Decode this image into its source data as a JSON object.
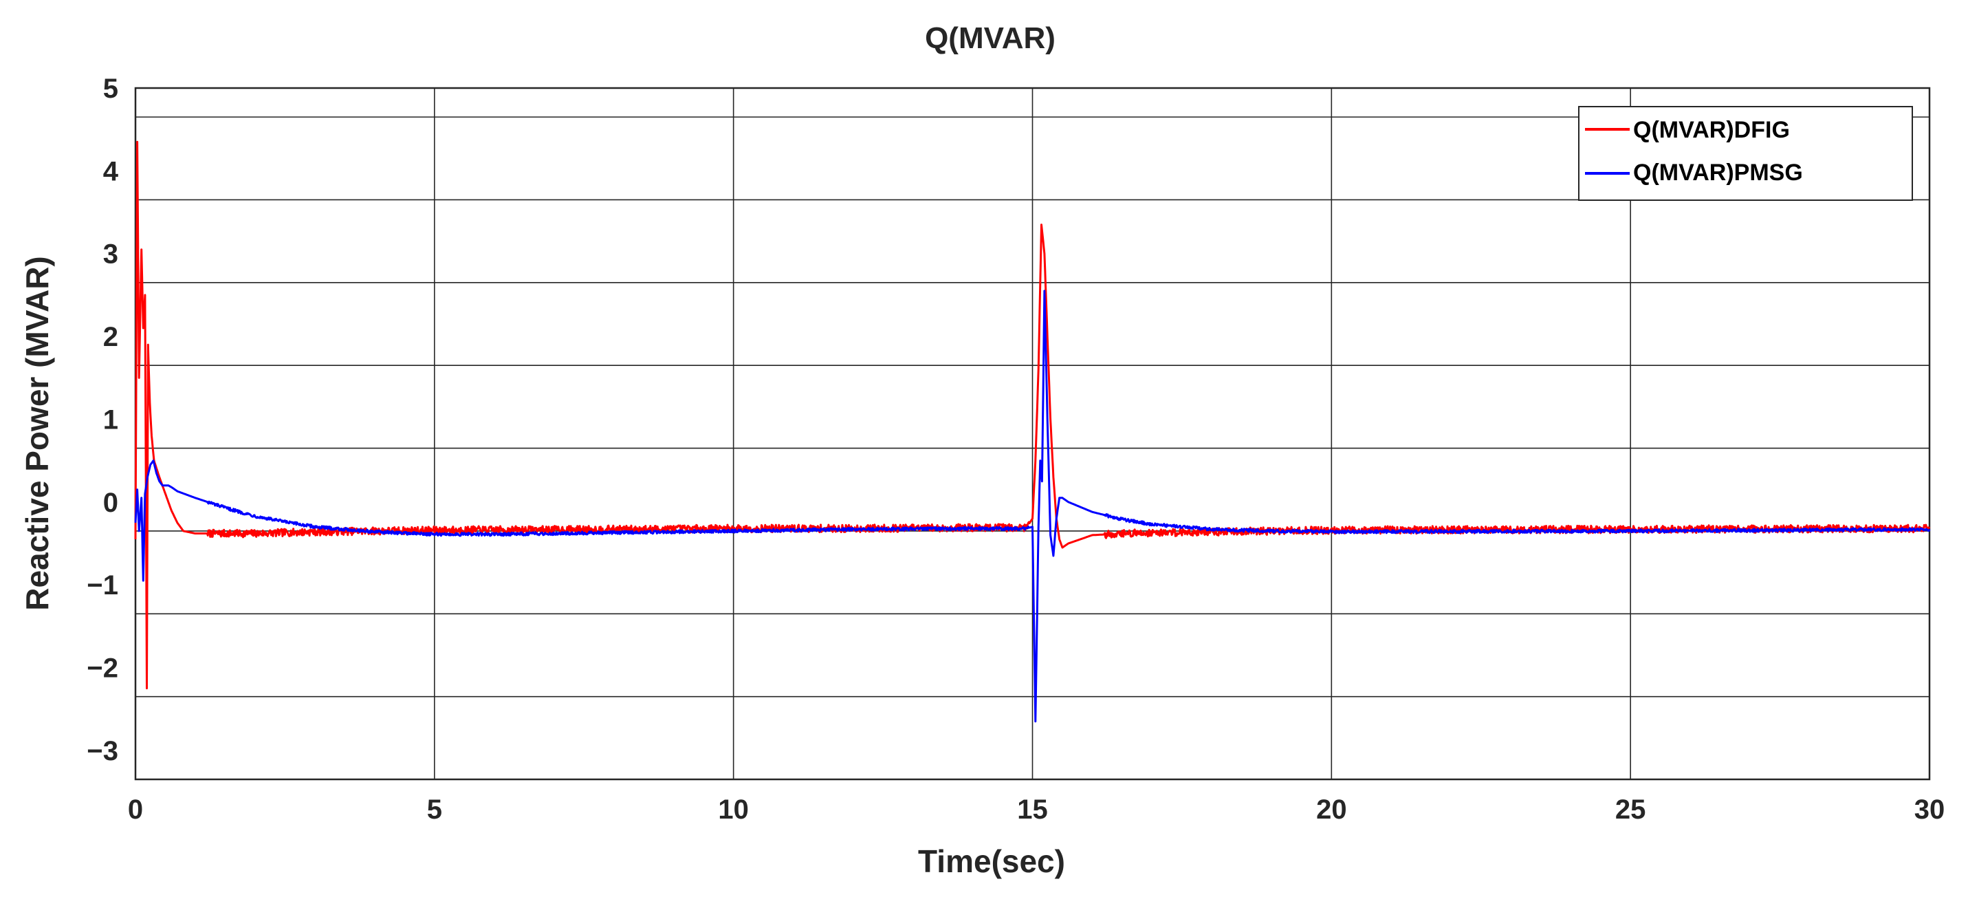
{
  "chart_data": {
    "type": "line",
    "title": "Q(MVAR)",
    "xlabel": "Time(sec)",
    "ylabel": "Reactive Power (MVAR)",
    "xlim": [
      0,
      30
    ],
    "ylim": [
      -3.35,
      5
    ],
    "grid": true,
    "legend_position": "top-right",
    "x_ticks": [
      0,
      5,
      10,
      15,
      20,
      25,
      30
    ],
    "x_tick_labels": [
      "0",
      "5",
      "10",
      "15",
      "20",
      "25",
      "30"
    ],
    "y_ticks": [
      -3,
      -2,
      -1,
      0,
      1,
      2,
      3,
      4,
      5
    ],
    "y_tick_labels": [
      "−3",
      "−2",
      "−1",
      "0",
      "1",
      "2",
      "3",
      "4",
      "5"
    ],
    "y_gridlines": [
      -2.35,
      -1.35,
      -0.35,
      0.65,
      1.65,
      2.65,
      3.65,
      4.65
    ],
    "series": [
      {
        "name": "Q(MVAR)DFIG",
        "color": "#ff0000",
        "x": [
          0,
          0.03,
          0.06,
          0.1,
          0.13,
          0.16,
          0.19,
          0.21,
          0.24,
          0.27,
          0.31,
          0.4,
          0.5,
          0.6,
          0.7,
          0.8,
          1.0,
          1.5,
          2.0,
          3.0,
          5.0,
          8.0,
          10.0,
          12.0,
          14.0,
          14.9,
          15.0,
          15.05,
          15.1,
          15.15,
          15.2,
          15.25,
          15.3,
          15.35,
          15.4,
          15.45,
          15.5,
          15.6,
          15.8,
          16.0,
          16.5,
          17.0,
          18.0,
          20.0,
          25.0,
          30.0
        ],
        "y": [
          -0.45,
          4.35,
          1.5,
          3.05,
          2.1,
          2.5,
          -2.25,
          1.9,
          1.2,
          0.8,
          0.5,
          0.3,
          0.1,
          -0.1,
          -0.25,
          -0.35,
          -0.38,
          -0.38,
          -0.38,
          -0.36,
          -0.34,
          -0.33,
          -0.32,
          -0.32,
          -0.31,
          -0.31,
          -0.2,
          0.5,
          1.6,
          3.35,
          3.0,
          2.0,
          1.0,
          0.3,
          -0.2,
          -0.45,
          -0.55,
          -0.5,
          -0.45,
          -0.4,
          -0.38,
          -0.37,
          -0.36,
          -0.34,
          -0.33,
          -0.32
        ]
      },
      {
        "name": "Q(MVAR)PMSG",
        "color": "#0000ff",
        "x": [
          0,
          0.03,
          0.06,
          0.1,
          0.13,
          0.16,
          0.2,
          0.25,
          0.3,
          0.35,
          0.4,
          0.45,
          0.5,
          0.55,
          0.6,
          0.7,
          1.0,
          1.5,
          2.0,
          2.5,
          3.0,
          4.0,
          5.0,
          6.0,
          8.0,
          10.0,
          12.0,
          14.0,
          14.9,
          15.0,
          15.05,
          15.1,
          15.13,
          15.16,
          15.2,
          15.25,
          15.3,
          15.35,
          15.4,
          15.45,
          15.5,
          15.6,
          16.0,
          16.5,
          17.0,
          18.0,
          19.0,
          20.0,
          25.0,
          30.0
        ],
        "y": [
          -0.25,
          0.15,
          -0.35,
          0.05,
          -0.95,
          0.1,
          0.3,
          0.45,
          0.5,
          0.35,
          0.25,
          0.2,
          0.2,
          0.2,
          0.18,
          0.13,
          0.05,
          -0.07,
          -0.17,
          -0.24,
          -0.3,
          -0.36,
          -0.39,
          -0.39,
          -0.37,
          -0.35,
          -0.33,
          -0.32,
          -0.32,
          -0.3,
          -2.65,
          -0.3,
          0.5,
          0.25,
          2.55,
          1.0,
          -0.4,
          -0.65,
          -0.2,
          0.05,
          0.05,
          0.0,
          -0.12,
          -0.21,
          -0.27,
          -0.33,
          -0.35,
          -0.36,
          -0.35,
          -0.33
        ]
      }
    ]
  }
}
